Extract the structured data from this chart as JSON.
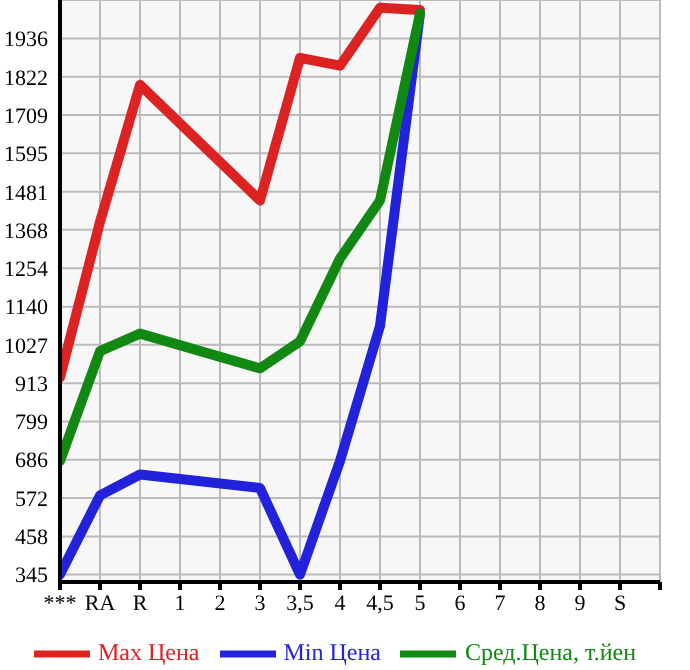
{
  "chart_data": {
    "type": "line",
    "categories": [
      "***",
      "RA",
      "R",
      "1",
      "2",
      "3",
      "3,5",
      "4",
      "4,5",
      "5",
      "6",
      "7",
      "8",
      "9",
      "S",
      null
    ],
    "series": [
      {
        "name": "Max Цена",
        "color": "#dd2222",
        "values": [
          930,
          1392,
          1798,
          null,
          null,
          1455,
          1878,
          1855,
          2027,
          2020,
          null,
          null,
          null,
          null,
          null,
          null
        ]
      },
      {
        "name": "Min Цена",
        "color": "#2222dd",
        "values": [
          345,
          580,
          642,
          null,
          null,
          602,
          345,
          682,
          1083,
          2010,
          null,
          null,
          null,
          null,
          null,
          null
        ]
      },
      {
        "name": "Сред.Цена, т.йен",
        "color": "#118811",
        "values": [
          682,
          1008,
          1060,
          null,
          null,
          957,
          1037,
          1283,
          1455,
          2010,
          null,
          null,
          null,
          null,
          null,
          null
        ]
      }
    ],
    "ylim": [
      323,
      2050
    ],
    "yticks": [
      345,
      458,
      572,
      686,
      799,
      913,
      1027,
      1140,
      1254,
      1368,
      1481,
      1595,
      1709,
      1822,
      1936
    ],
    "grid": true,
    "legend": "bottom",
    "marker": "none",
    "line_style": "solid"
  }
}
